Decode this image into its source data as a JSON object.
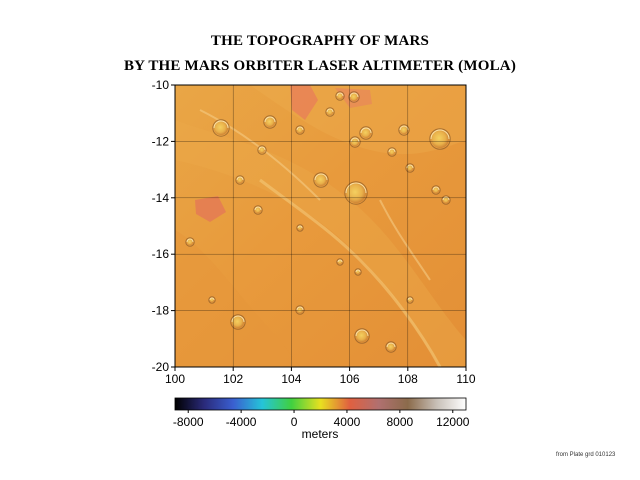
{
  "title_line1": "THE TOPOGRAPHY OF MARS",
  "title_line2": "BY THE MARS ORBITER LASER ALTIMETER (MOLA)",
  "map": {
    "x_ticks": [
      "100",
      "102",
      "104",
      "106",
      "108",
      "110"
    ],
    "y_ticks": [
      "-10",
      "-12",
      "-14",
      "-16",
      "-18",
      "-20"
    ],
    "x_range": [
      100,
      110
    ],
    "y_range": [
      -20,
      -10
    ],
    "grid": true,
    "terrain_color": "#e89a3c"
  },
  "colorbar": {
    "tick_labels": [
      "-8000",
      "-4000",
      "0",
      "4000",
      "8000",
      "12000"
    ],
    "tick_values": [
      -8000,
      -4000,
      0,
      4000,
      8000,
      12000
    ],
    "range": [
      -9000,
      13000
    ],
    "label": "meters",
    "stops": [
      "#000000",
      "#2a2a7a",
      "#3a5fd0",
      "#25c4d8",
      "#40d040",
      "#e8e020",
      "#e06040",
      "#b07070",
      "#8b6b4b",
      "#c8c0b8",
      "#ffffff"
    ]
  },
  "credit": "from Plate grd 010123"
}
